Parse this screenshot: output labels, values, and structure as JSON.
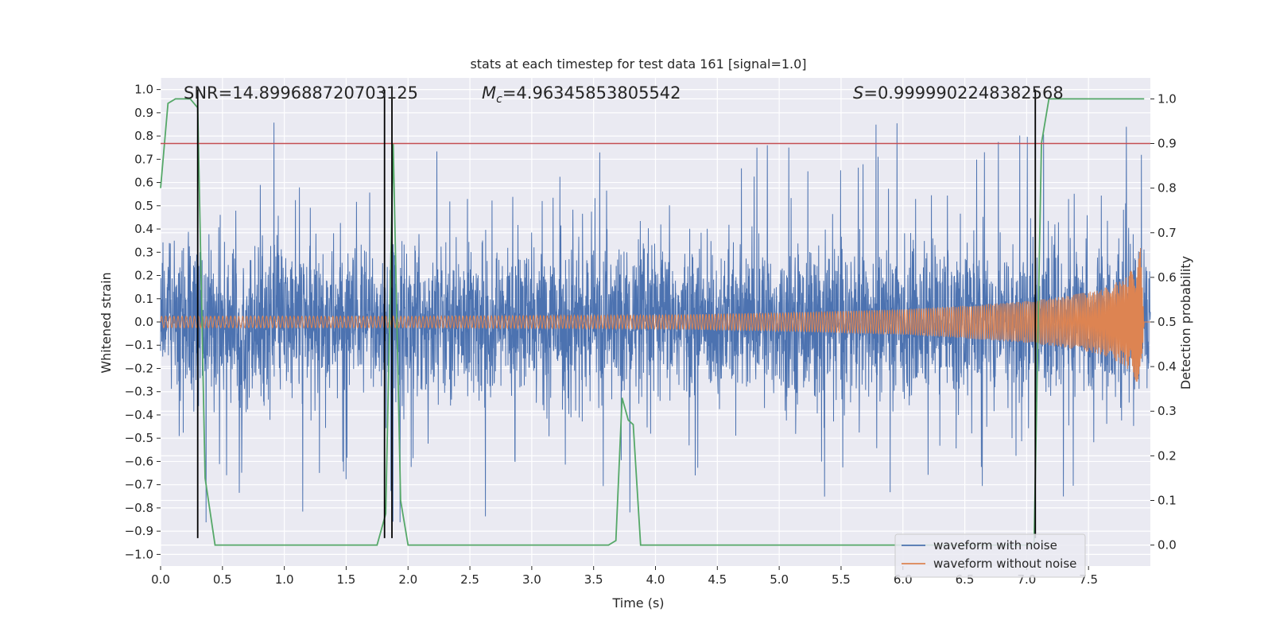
{
  "chart_data": {
    "type": "line",
    "title": "stats at each timestep for test data 161 [signal=1.0]",
    "xlabel": "Time (s)",
    "ylabel_left": "Whitened strain",
    "ylabel_right": "Detection probability",
    "xlim": [
      0.0,
      8.0
    ],
    "ylim_left": [
      -1.05,
      1.05
    ],
    "ylim_right": [
      -0.047,
      1.047
    ],
    "x_ticks": [
      0.0,
      0.5,
      1.0,
      1.5,
      2.0,
      2.5,
      3.0,
      3.5,
      4.0,
      4.5,
      5.0,
      5.5,
      6.0,
      6.5,
      7.0,
      7.5
    ],
    "y_ticks_left": [
      -1.0,
      -0.9,
      -0.8,
      -0.7,
      -0.6,
      -0.5,
      -0.4,
      -0.3,
      -0.2,
      -0.1,
      0.0,
      0.1,
      0.2,
      0.3,
      0.4,
      0.5,
      0.6,
      0.7,
      0.8,
      0.9,
      1.0
    ],
    "y_ticks_right": [
      0.0,
      0.1,
      0.2,
      0.3,
      0.4,
      0.5,
      0.6,
      0.7,
      0.8,
      0.9,
      1.0
    ],
    "grid": true,
    "legend_position": "bottom-right",
    "annotations": {
      "snr": "SNR=14.899688720703125",
      "mc_symbol": "M",
      "mc_sub": "c",
      "mc_value": "=4.96345853805542",
      "s_symbol": "S",
      "s_value": "=0.9999902248382568"
    },
    "series": [
      {
        "name": "waveform with noise",
        "color": "#4c72b0",
        "axis": "left",
        "kind": "noise",
        "duration": 8.0,
        "typical_amplitude": 0.35,
        "peak_amplitude": 0.87
      },
      {
        "name": "waveform without noise",
        "color": "#dd8452",
        "axis": "left",
        "kind": "chirp",
        "duration": 7.95,
        "amplitude_envelope": {
          "x": [
            0.0,
            2.0,
            4.0,
            5.0,
            6.0,
            6.5,
            7.0,
            7.3,
            7.6,
            7.8,
            7.88,
            7.92,
            7.95
          ],
          "y": [
            0.025,
            0.025,
            0.03,
            0.04,
            0.055,
            0.07,
            0.09,
            0.11,
            0.14,
            0.19,
            0.25,
            0.32,
            0.0
          ]
        }
      },
      {
        "name": "detection probability",
        "color": "#55a868",
        "axis": "right",
        "x": [
          0.0,
          0.06,
          0.12,
          0.24,
          0.3,
          0.36,
          0.44,
          1.75,
          1.82,
          1.88,
          1.94,
          2.0,
          3.62,
          3.68,
          3.73,
          3.78,
          3.82,
          3.88,
          4.2,
          7.06,
          7.12,
          7.18,
          7.95
        ],
        "y": [
          0.8,
          0.99,
          1.0,
          1.0,
          0.98,
          0.15,
          0.0,
          0.0,
          0.07,
          0.9,
          0.1,
          0.0,
          0.0,
          0.01,
          0.33,
          0.28,
          0.27,
          0.0,
          0.0,
          0.0,
          0.9,
          1.0,
          1.0
        ]
      },
      {
        "name": "threshold",
        "color": "#c44e52",
        "axis": "right",
        "y_value": 0.9
      }
    ],
    "vertical_lines": [
      0.3,
      1.81,
      1.87,
      7.07
    ],
    "vertical_line_color": "#000000"
  }
}
